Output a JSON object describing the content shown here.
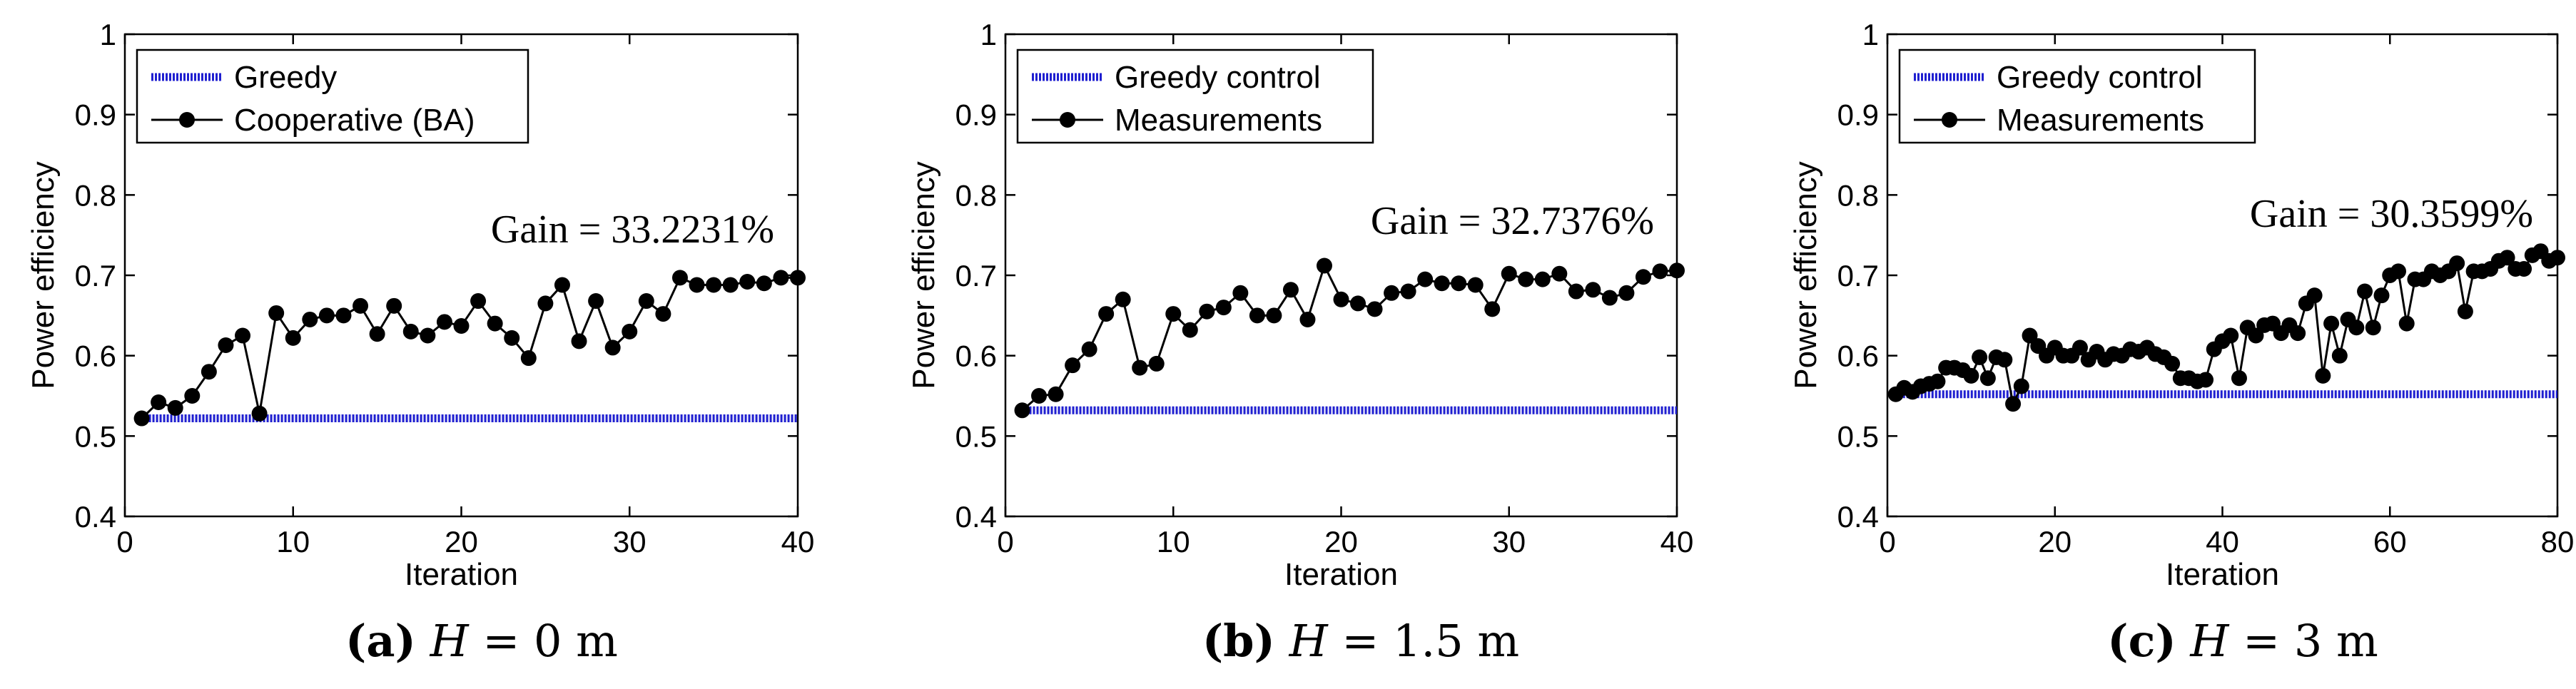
{
  "figure": {
    "captions": [
      {
        "letter": "(a)",
        "var": "H",
        "value": " = 0 m"
      },
      {
        "letter": "(b)",
        "var": "H",
        "value": " = 1.5 m"
      },
      {
        "letter": "(c)",
        "var": "H",
        "value": " = 3 m"
      }
    ]
  },
  "chart_data": [
    {
      "type": "line",
      "title": "",
      "xlabel": "Iteration",
      "ylabel": "Power efficiency",
      "xlim": [
        0,
        40
      ],
      "ylim": [
        0.4,
        1
      ],
      "xticks": [
        "0",
        "10",
        "20",
        "30",
        "40"
      ],
      "yticks": [
        "0.4",
        "0.5",
        "0.6",
        "0.7",
        "0.8",
        "0.9",
        "1"
      ],
      "legend_position": "top-left",
      "annotation": "Gain = 33.2231%",
      "series": [
        {
          "name": "Greedy",
          "style": "dashed-line",
          "color": "#1f1fd0",
          "x": [
            1,
            40
          ],
          "values": [
            0.522,
            0.522
          ]
        },
        {
          "name": "Cooperative (BA)",
          "style": "line-marker",
          "color": "#000000",
          "x": [
            1,
            2,
            3,
            4,
            5,
            6,
            7,
            8,
            9,
            10,
            11,
            12,
            13,
            14,
            15,
            16,
            17,
            18,
            19,
            20,
            21,
            22,
            23,
            24,
            25,
            26,
            27,
            28,
            29,
            30,
            31,
            32,
            33,
            34,
            35,
            36,
            37,
            38,
            39,
            40
          ],
          "values": [
            0.522,
            0.542,
            0.535,
            0.55,
            0.58,
            0.613,
            0.625,
            0.528,
            0.653,
            0.622,
            0.645,
            0.65,
            0.65,
            0.662,
            0.627,
            0.662,
            0.63,
            0.625,
            0.642,
            0.637,
            0.668,
            0.64,
            0.622,
            0.597,
            0.665,
            0.688,
            0.618,
            0.668,
            0.61,
            0.63,
            0.668,
            0.652,
            0.697,
            0.688,
            0.688,
            0.688,
            0.692,
            0.69,
            0.697,
            0.697
          ]
        }
      ]
    },
    {
      "type": "line",
      "title": "",
      "xlabel": "Iteration",
      "ylabel": "Power efficiency",
      "xlim": [
        0,
        40
      ],
      "ylim": [
        0.4,
        1
      ],
      "xticks": [
        "0",
        "10",
        "20",
        "30",
        "40"
      ],
      "yticks": [
        "0.4",
        "0.5",
        "0.6",
        "0.7",
        "0.8",
        "0.9",
        "1"
      ],
      "legend_position": "top-left",
      "annotation": "Gain = 32.7376%",
      "series": [
        {
          "name": "Greedy control",
          "style": "dashed-line",
          "color": "#1f1fd0",
          "x": [
            1,
            40
          ],
          "values": [
            0.532,
            0.532
          ]
        },
        {
          "name": "Measurements",
          "style": "line-marker",
          "color": "#000000",
          "x": [
            1,
            2,
            3,
            4,
            5,
            6,
            7,
            8,
            9,
            10,
            11,
            12,
            13,
            14,
            15,
            16,
            17,
            18,
            19,
            20,
            21,
            22,
            23,
            24,
            25,
            26,
            27,
            28,
            29,
            30,
            31,
            32,
            33,
            34,
            35,
            36,
            37,
            38,
            39,
            40
          ],
          "values": [
            0.532,
            0.55,
            0.552,
            0.588,
            0.608,
            0.652,
            0.67,
            0.585,
            0.59,
            0.652,
            0.632,
            0.655,
            0.66,
            0.678,
            0.65,
            0.65,
            0.682,
            0.645,
            0.712,
            0.67,
            0.665,
            0.658,
            0.678,
            0.68,
            0.695,
            0.69,
            0.69,
            0.688,
            0.658,
            0.702,
            0.695,
            0.695,
            0.702,
            0.68,
            0.682,
            0.672,
            0.678,
            0.698,
            0.705,
            0.706
          ]
        }
      ]
    },
    {
      "type": "line",
      "title": "",
      "xlabel": "Iteration",
      "ylabel": "Power efficiency",
      "xlim": [
        0,
        80
      ],
      "ylim": [
        0.4,
        1
      ],
      "xticks": [
        "0",
        "20",
        "40",
        "60",
        "80"
      ],
      "yticks": [
        "0.4",
        "0.5",
        "0.6",
        "0.7",
        "0.8",
        "0.9",
        "1"
      ],
      "legend_position": "top-left",
      "annotation": "Gain = 30.3599%",
      "series": [
        {
          "name": "Greedy control",
          "style": "dashed-line",
          "color": "#1f1fd0",
          "x": [
            1,
            80
          ],
          "values": [
            0.552,
            0.552
          ]
        },
        {
          "name": "Measurements",
          "style": "line-marker",
          "color": "#000000",
          "x": [
            1,
            2,
            3,
            4,
            5,
            6,
            7,
            8,
            9,
            10,
            11,
            12,
            13,
            14,
            15,
            16,
            17,
            18,
            19,
            20,
            21,
            22,
            23,
            24,
            25,
            26,
            27,
            28,
            29,
            30,
            31,
            32,
            33,
            34,
            35,
            36,
            37,
            38,
            39,
            40,
            41,
            42,
            43,
            44,
            45,
            46,
            47,
            48,
            49,
            50,
            51,
            52,
            53,
            54,
            55,
            56,
            57,
            58,
            59,
            60,
            61,
            62,
            63,
            64,
            65,
            66,
            67,
            68,
            69,
            70,
            71,
            72,
            73,
            74,
            75,
            76,
            77,
            78,
            79,
            80
          ],
          "values": [
            0.552,
            0.56,
            0.555,
            0.562,
            0.565,
            0.568,
            0.585,
            0.585,
            0.582,
            0.575,
            0.598,
            0.572,
            0.598,
            0.595,
            0.54,
            0.562,
            0.625,
            0.612,
            0.6,
            0.61,
            0.6,
            0.6,
            0.61,
            0.595,
            0.605,
            0.595,
            0.602,
            0.6,
            0.608,
            0.605,
            0.61,
            0.602,
            0.598,
            0.59,
            0.572,
            0.572,
            0.568,
            0.57,
            0.608,
            0.618,
            0.625,
            0.572,
            0.635,
            0.625,
            0.638,
            0.64,
            0.628,
            0.638,
            0.628,
            0.665,
            0.675,
            0.575,
            0.64,
            0.6,
            0.645,
            0.635,
            0.68,
            0.635,
            0.675,
            0.7,
            0.705,
            0.64,
            0.695,
            0.695,
            0.705,
            0.7,
            0.705,
            0.715,
            0.655,
            0.705,
            0.705,
            0.708,
            0.718,
            0.722,
            0.708,
            0.708,
            0.725,
            0.73,
            0.718,
            0.722
          ]
        }
      ]
    }
  ]
}
